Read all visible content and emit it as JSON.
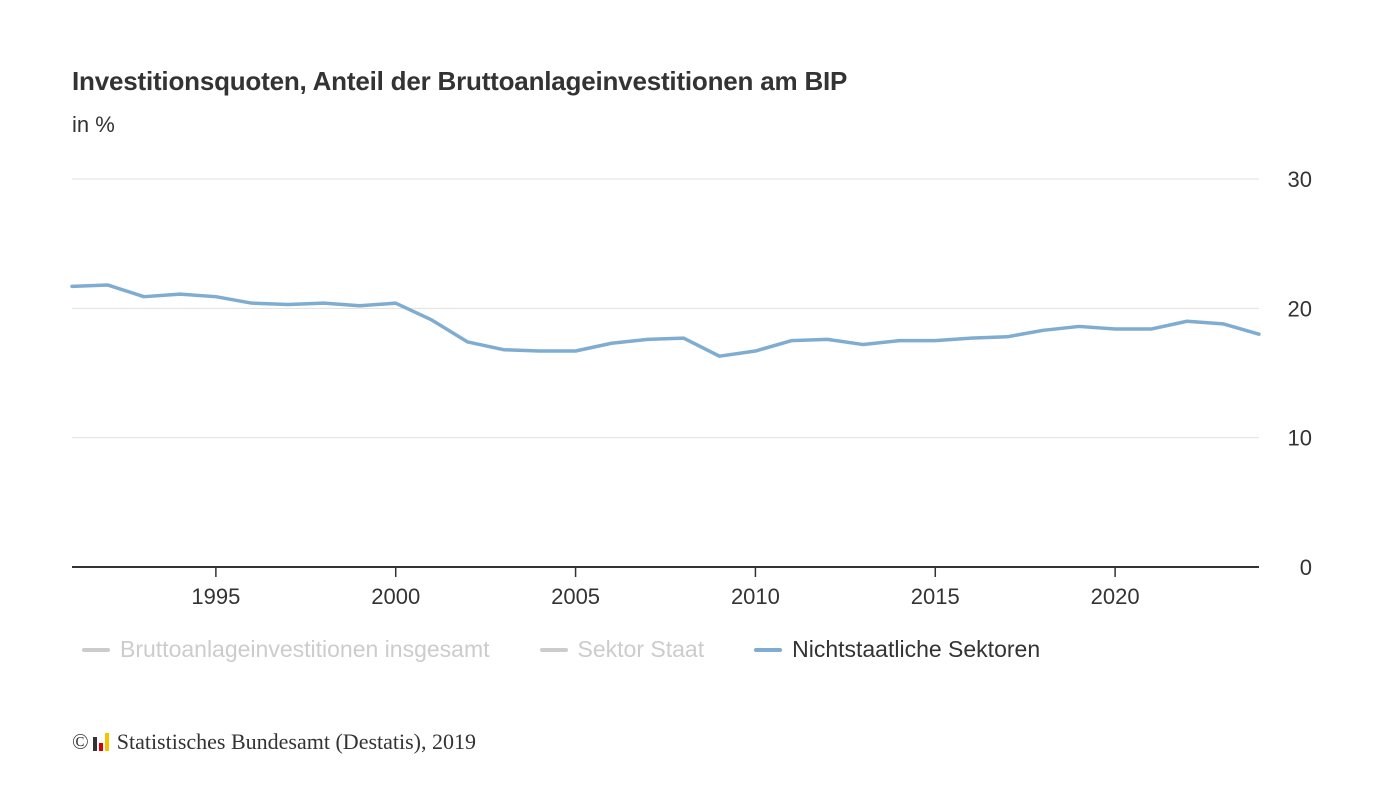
{
  "title": "Investitionsquoten, Anteil der Bruttoanlageinvestitionen am BIP",
  "subtitle": "in %",
  "legend": [
    {
      "label": "Bruttoanlageinvestitionen insgesamt",
      "active": false
    },
    {
      "label": "Sektor Staat",
      "active": false
    },
    {
      "label": "Nichtstaatliche Sektoren",
      "active": true
    }
  ],
  "credits": {
    "copyright_symbol": "©",
    "text": "Statistisches Bundesamt (Destatis), 2019"
  },
  "colors": {
    "series_active": "#7fadd1",
    "series_inactive": "#cccccc",
    "grid": "#e0e0e0",
    "axis": "#333333"
  },
  "chart_data": {
    "type": "line",
    "title": "Investitionsquoten, Anteil der Bruttoanlageinvestitionen am BIP",
    "subtitle": "in %",
    "xlabel": "",
    "ylabel": "",
    "xlim": [
      1991,
      2024
    ],
    "ylim": [
      0,
      30
    ],
    "x_ticks": [
      1995,
      2000,
      2005,
      2010,
      2015,
      2020
    ],
    "y_ticks": [
      0,
      10,
      20,
      30
    ],
    "grid": true,
    "y_axis_position": "right",
    "legend_position": "bottom",
    "x": [
      1991,
      1992,
      1993,
      1994,
      1995,
      1996,
      1997,
      1998,
      1999,
      2000,
      2001,
      2002,
      2003,
      2004,
      2005,
      2006,
      2007,
      2008,
      2009,
      2010,
      2011,
      2012,
      2013,
      2014,
      2015,
      2016,
      2017,
      2018,
      2019,
      2020,
      2021,
      2022,
      2023,
      2024
    ],
    "series": [
      {
        "name": "Nichtstaatliche Sektoren",
        "values": [
          21.7,
          21.8,
          20.9,
          21.1,
          20.9,
          20.4,
          20.3,
          20.4,
          20.2,
          20.4,
          19.1,
          17.4,
          16.8,
          16.7,
          16.7,
          17.3,
          17.6,
          17.7,
          16.3,
          16.7,
          17.5,
          17.6,
          17.2,
          17.5,
          17.5,
          17.7,
          17.8,
          18.3,
          18.6,
          18.4,
          18.4,
          19.0,
          18.8,
          18.0
        ]
      }
    ]
  }
}
